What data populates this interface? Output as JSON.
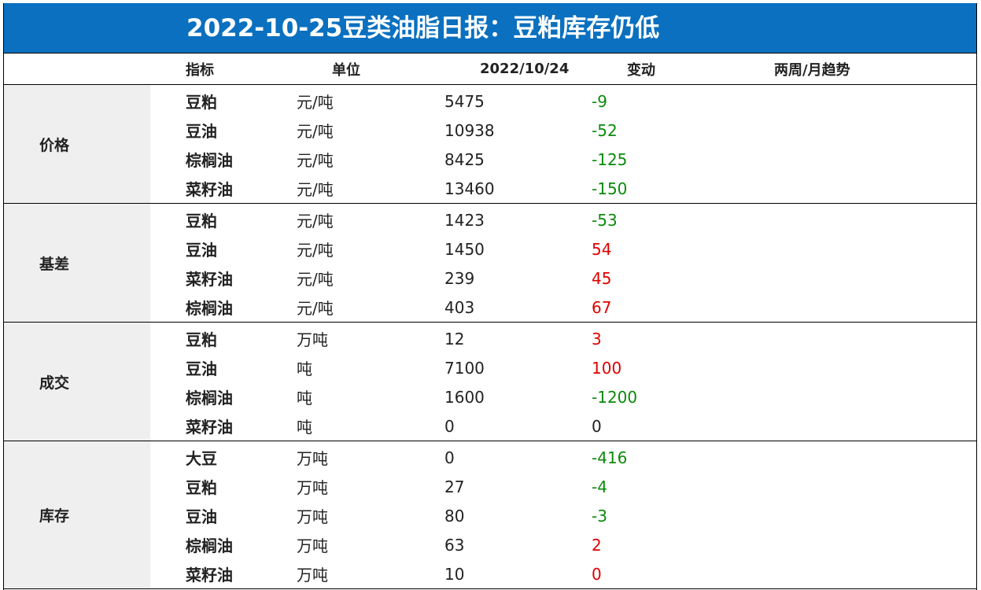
{
  "title": "2022-10-25豆类油脂日报：豆粕库存仍低",
  "headers": {
    "indicator": "指标",
    "unit": "单位",
    "date": "2022/10/24",
    "change": "变动",
    "trend": "两周/月趋势"
  },
  "groups": [
    {
      "category": "价格",
      "rows": [
        {
          "name": "豆粕",
          "unit": "元/吨",
          "value": "5475",
          "change": "-9",
          "dir": "neg"
        },
        {
          "name": "豆油",
          "unit": "元/吨",
          "value": "10938",
          "change": "-52",
          "dir": "neg"
        },
        {
          "name": "棕榈油",
          "unit": "元/吨",
          "value": "8425",
          "change": "-125",
          "dir": "neg"
        },
        {
          "name": "菜籽油",
          "unit": "元/吨",
          "value": "13460",
          "change": "-150",
          "dir": "neg"
        }
      ]
    },
    {
      "category": "基差",
      "rows": [
        {
          "name": "豆粕",
          "unit": "元/吨",
          "value": "1423",
          "change": "-53",
          "dir": "neg"
        },
        {
          "name": "豆油",
          "unit": "元/吨",
          "value": "1450",
          "change": "54",
          "dir": "pos"
        },
        {
          "name": "菜籽油",
          "unit": "元/吨",
          "value": "239",
          "change": "45",
          "dir": "pos"
        },
        {
          "name": "棕榈油",
          "unit": "元/吨",
          "value": "403",
          "change": "67",
          "dir": "pos"
        }
      ]
    },
    {
      "category": "成交",
      "rows": [
        {
          "name": "豆粕",
          "unit": "万吨",
          "value": "12",
          "change": "3",
          "dir": "pos"
        },
        {
          "name": "豆油",
          "unit": "吨",
          "value": "7100",
          "change": "100",
          "dir": "pos"
        },
        {
          "name": "棕榈油",
          "unit": "吨",
          "value": "1600",
          "change": "-1200",
          "dir": "neg"
        },
        {
          "name": "菜籽油",
          "unit": "吨",
          "value": "0",
          "change": "0",
          "dir": "zero"
        }
      ]
    },
    {
      "category": "库存",
      "rows": [
        {
          "name": "大豆",
          "unit": "万吨",
          "value": "0",
          "change": "-416",
          "dir": "neg"
        },
        {
          "name": "豆粕",
          "unit": "万吨",
          "value": "27",
          "change": "-4",
          "dir": "neg"
        },
        {
          "name": "豆油",
          "unit": "万吨",
          "value": "80",
          "change": "-3",
          "dir": "neg"
        },
        {
          "name": "棕榈油",
          "unit": "万吨",
          "value": "63",
          "change": "2",
          "dir": "pos"
        },
        {
          "name": "菜籽油",
          "unit": "万吨",
          "value": "10",
          "change": "0",
          "dir": "pos"
        }
      ]
    }
  ],
  "colors": {
    "title_bg": "#0a70bf",
    "category_bg": "#efefef",
    "positive": "#e00000",
    "negative": "#0a8a0a"
  }
}
